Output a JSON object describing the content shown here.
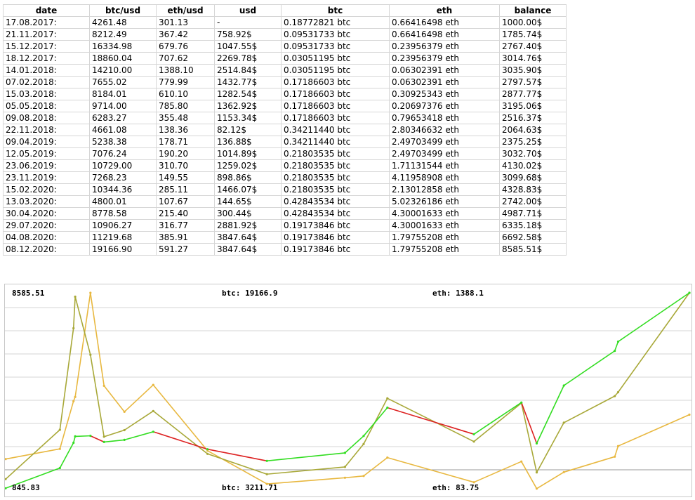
{
  "table": {
    "headers": [
      "date",
      "btc/usd",
      "eth/usd",
      "usd",
      "btc",
      "eth",
      "balance"
    ],
    "rows": [
      [
        "17.08.2017:",
        "4261.48",
        "301.13",
        "-",
        "0.18772821 btc",
        "0.66416498 eth",
        "1000.00$"
      ],
      [
        "21.11.2017:",
        "8212.49",
        "367.42",
        "758.92$",
        "0.09531733 btc",
        "0.66416498 eth",
        "1785.74$"
      ],
      [
        "15.12.2017:",
        "16334.98",
        "679.76",
        "1047.55$",
        "0.09531733 btc",
        "0.23956379 eth",
        "2767.40$"
      ],
      [
        "18.12.2017:",
        "18860.04",
        "707.62",
        "2269.78$",
        "0.03051195 btc",
        "0.23956379 eth",
        "3014.76$"
      ],
      [
        "14.01.2018:",
        "14210.00",
        "1388.10",
        "2514.84$",
        "0.03051195 btc",
        "0.06302391 eth",
        "3035.90$"
      ],
      [
        "07.02.2018:",
        "7655.02",
        "779.99",
        "1432.77$",
        "0.17186603 btc",
        "0.06302391 eth",
        "2797.57$"
      ],
      [
        "15.03.2018:",
        "8184.01",
        "610.10",
        "1282.54$",
        "0.17186603 btc",
        "0.30925343 eth",
        "2877.77$"
      ],
      [
        "05.05.2018:",
        "9714.00",
        "785.80",
        "1362.92$",
        "0.17186603 btc",
        "0.20697376 eth",
        "3195.06$"
      ],
      [
        "09.08.2018:",
        "6283.27",
        "355.48",
        "1153.34$",
        "0.17186603 btc",
        "0.79653418 eth",
        "2516.37$"
      ],
      [
        "22.11.2018:",
        "4661.08",
        "138.36",
        "82.12$",
        "0.34211440 btc",
        "2.80346632 eth",
        "2064.63$"
      ],
      [
        "09.04.2019:",
        "5238.38",
        "178.71",
        "136.88$",
        "0.34211440 btc",
        "2.49703499 eth",
        "2375.25$"
      ],
      [
        "12.05.2019:",
        "7076.24",
        "190.20",
        "1014.89$",
        "0.21803535 btc",
        "2.49703499 eth",
        "3032.70$"
      ],
      [
        "23.06.2019:",
        "10729.00",
        "310.70",
        "1259.02$",
        "0.21803535 btc",
        "1.71131544 eth",
        "4130.02$"
      ],
      [
        "23.11.2019:",
        "7268.23",
        "149.55",
        "898.86$",
        "0.21803535 btc",
        "4.11958908 eth",
        "3099.68$"
      ],
      [
        "15.02.2020:",
        "10344.36",
        "285.11",
        "1466.07$",
        "0.21803535 btc",
        "2.13012858 eth",
        "4328.83$"
      ],
      [
        "13.03.2020:",
        "4800.01",
        "107.67",
        "144.65$",
        "0.42843534 btc",
        "5.02326186 eth",
        "2742.00$"
      ],
      [
        "30.04.2020:",
        "8778.58",
        "215.40",
        "300.44$",
        "0.42843534 btc",
        "4.30001633 eth",
        "4987.71$"
      ],
      [
        "29.07.2020:",
        "10906.27",
        "316.77",
        "2881.92$",
        "0.19173846 btc",
        "4.30001633 eth",
        "6335.18$"
      ],
      [
        "04.08.2020:",
        "11219.68",
        "385.91",
        "3847.64$",
        "0.19173846 btc",
        "1.79755208 eth",
        "6692.58$"
      ],
      [
        "08.12.2020:",
        "19166.90",
        "591.27",
        "3847.64$",
        "0.19173846 btc",
        "1.79755208 eth",
        "8585.51$"
      ]
    ]
  },
  "chart_labels": {
    "max_balance": "8585.51",
    "min_balance": "845.83",
    "btc_max": "btc: 19166.9",
    "btc_min": "btc: 3211.71",
    "eth_max": "eth: 1388.1",
    "eth_min": "eth: 83.75"
  },
  "colors": {
    "balance_up": "#33dd22",
    "balance_down": "#dd2222",
    "btc_line": "#a8a838",
    "eth_line": "#e8b840",
    "grid": "#d4d4d4",
    "baseline": "#999999"
  },
  "chart_data": {
    "type": "line",
    "title": "",
    "grid": true,
    "x": [
      "17.08.2017",
      "21.11.2017",
      "15.12.2017",
      "18.12.2017",
      "14.01.2018",
      "07.02.2018",
      "15.03.2018",
      "05.05.2018",
      "09.08.2018",
      "22.11.2018",
      "09.04.2019",
      "12.05.2019",
      "23.06.2019",
      "23.11.2019",
      "15.02.2020",
      "13.03.2020",
      "30.04.2020",
      "29.07.2020",
      "04.08.2020",
      "08.12.2020"
    ],
    "series": [
      {
        "name": "balance",
        "values": [
          1000.0,
          1785.74,
          2767.4,
          3014.76,
          3035.9,
          2797.57,
          2877.77,
          3195.06,
          2516.37,
          2064.63,
          2375.25,
          3032.7,
          4130.02,
          3099.68,
          4328.83,
          2742.0,
          4987.71,
          6335.18,
          6692.58,
          8585.51
        ],
        "range": [
          845.83,
          8585.51
        ]
      },
      {
        "name": "btc",
        "values": [
          4261.48,
          8212.49,
          16334.98,
          18860.04,
          14210.0,
          7655.02,
          8184.01,
          9714.0,
          6283.27,
          4661.08,
          5238.38,
          7076.24,
          10729.0,
          7268.23,
          10344.36,
          4800.01,
          8778.58,
          10906.27,
          11219.68,
          19166.9
        ],
        "range": [
          3211.71,
          19166.9
        ]
      },
      {
        "name": "eth",
        "values": [
          301.13,
          367.42,
          679.76,
          707.62,
          1388.1,
          779.99,
          610.1,
          785.8,
          355.48,
          138.36,
          178.71,
          190.2,
          310.7,
          149.55,
          285.11,
          107.67,
          215.4,
          316.77,
          385.91,
          591.27
        ],
        "range": [
          83.75,
          1388.1
        ]
      }
    ]
  }
}
